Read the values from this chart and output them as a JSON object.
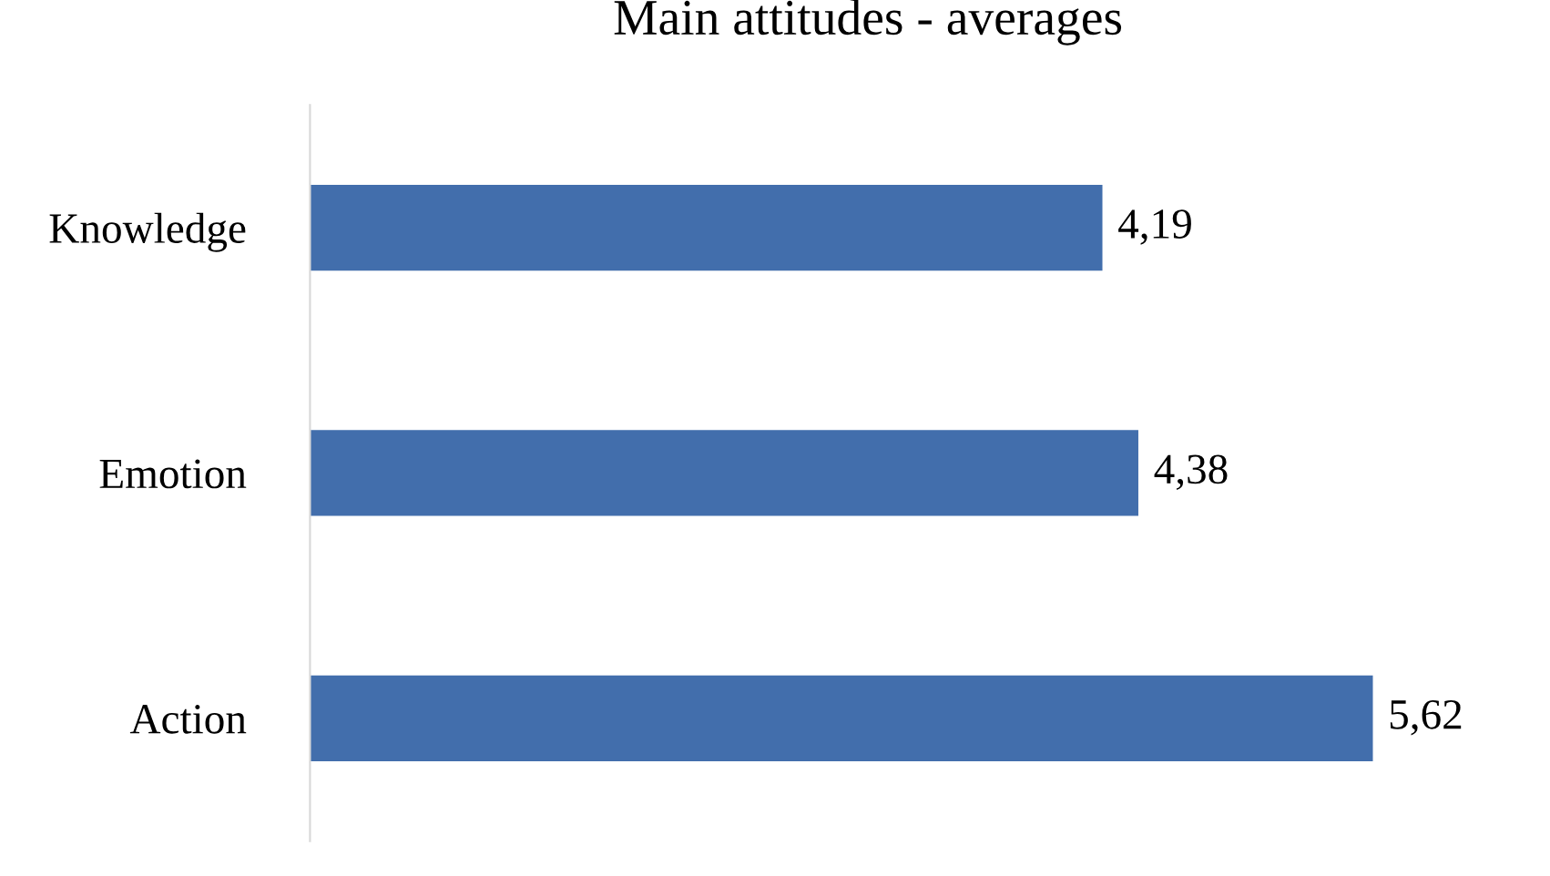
{
  "chart_data": {
    "type": "bar",
    "orientation": "horizontal",
    "title": "Main attitudes - averages",
    "categories": [
      "Knowledge",
      "Emotion",
      "Action"
    ],
    "values": [
      4.19,
      4.38,
      5.62
    ],
    "value_labels": [
      "4,19",
      "4,38",
      "5,62"
    ],
    "color": "#426eac",
    "grid": false,
    "legend": false
  }
}
